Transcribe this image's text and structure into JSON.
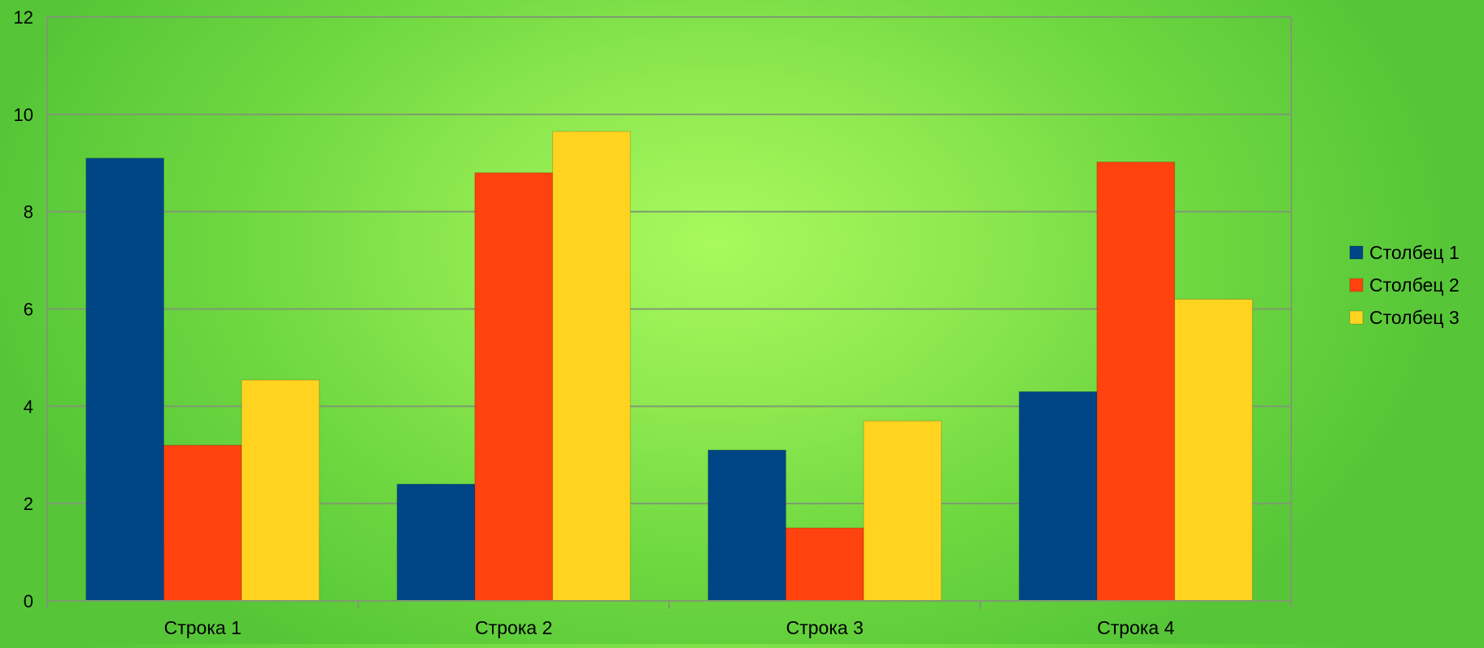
{
  "chart_data": {
    "type": "bar",
    "categories": [
      "Строка 1",
      "Строка 2",
      "Строка 3",
      "Строка 4"
    ],
    "series": [
      {
        "name": "Столбец 1",
        "values": [
          9.1,
          2.4,
          3.1,
          4.3
        ],
        "color": "#004586"
      },
      {
        "name": "Столбец 2",
        "values": [
          3.2,
          8.8,
          1.5,
          9.02
        ],
        "color": "#ff420e"
      },
      {
        "name": "Столбец 3",
        "values": [
          4.54,
          9.65,
          3.7,
          6.2
        ],
        "color": "#ffd320"
      }
    ],
    "title": "",
    "xlabel": "",
    "ylabel": "",
    "ylim": [
      0,
      12
    ],
    "yticks": [
      "0",
      "2",
      "4",
      "6",
      "8",
      "10",
      "12"
    ],
    "grid": true,
    "legend_position": "right"
  }
}
